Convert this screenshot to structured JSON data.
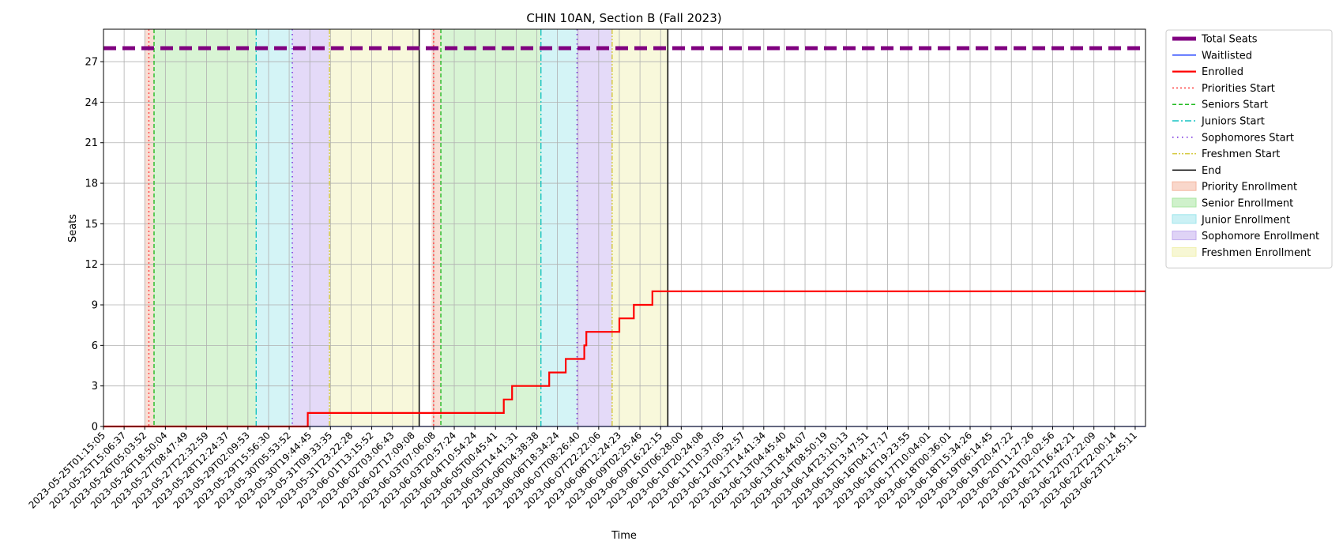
{
  "chart_data": {
    "type": "line",
    "title": "CHIN 10AN, Section B (Fall 2023)",
    "xlabel": "Time",
    "ylabel": "Seats",
    "ylim": [
      0,
      29.4
    ],
    "yticks": [
      0,
      3,
      6,
      9,
      12,
      15,
      18,
      21,
      24,
      27
    ],
    "grid": true,
    "legend_placement": "outside-right-top",
    "x_tick_labels": [
      "2023-05-25T01:15:05",
      "2023-05-25T15:06:37",
      "2023-05-26T05:03:52",
      "2023-05-26T18:50:04",
      "2023-05-27T08:47:49",
      "2023-05-27T22:32:59",
      "2023-05-28T12:24:37",
      "2023-05-29T02:09:53",
      "2023-05-29T15:56:30",
      "2023-05-30T05:53:52",
      "2023-05-30T19:44:45",
      "2023-05-31T09:33:35",
      "2023-05-31T23:22:28",
      "2023-06-01T13:15:52",
      "2023-06-02T03:06:43",
      "2023-06-02T17:09:08",
      "2023-06-03T07:06:08",
      "2023-06-03T20:57:24",
      "2023-06-04T10:54:24",
      "2023-06-05T00:45:41",
      "2023-06-05T14:41:31",
      "2023-06-06T04:38:38",
      "2023-06-06T18:34:24",
      "2023-06-07T08:26:40",
      "2023-06-07T22:22:06",
      "2023-06-08T12:24:23",
      "2023-06-09T02:25:46",
      "2023-06-09T16:22:15",
      "2023-06-10T06:28:00",
      "2023-06-10T20:24:08",
      "2023-06-11T10:37:05",
      "2023-06-12T00:32:57",
      "2023-06-12T14:41:34",
      "2023-06-13T04:45:40",
      "2023-06-13T18:44:07",
      "2023-06-14T08:50:19",
      "2023-06-14T23:10:13",
      "2023-06-15T13:47:51",
      "2023-06-16T04:17:17",
      "2023-06-16T19:23:55",
      "2023-06-17T10:04:01",
      "2023-06-18T00:36:01",
      "2023-06-18T15:34:26",
      "2023-06-19T06:14:45",
      "2023-06-19T20:47:22",
      "2023-06-20T11:27:26",
      "2023-06-21T02:02:56",
      "2023-06-21T16:42:21",
      "2023-06-22T07:22:09",
      "2023-06-22T22:00:14",
      "2023-06-23T12:45:11"
    ],
    "x_range_index": [
      0,
      50.5
    ],
    "series": [
      {
        "name": "Total Seats",
        "color": "#800080",
        "style": "dashed-thick",
        "points": [
          [
            0,
            28
          ],
          [
            50.5,
            28
          ]
        ]
      },
      {
        "name": "Waitlisted",
        "color": "#1f3fff",
        "style": "solid-thin",
        "points": [
          [
            0,
            0
          ],
          [
            50.5,
            0
          ]
        ]
      },
      {
        "name": "Enrolled",
        "color": "#ff0000",
        "style": "steps",
        "points": [
          [
            0,
            0
          ],
          [
            9.9,
            0
          ],
          [
            9.9,
            1
          ],
          [
            19.4,
            1
          ],
          [
            19.4,
            2
          ],
          [
            19.8,
            2
          ],
          [
            19.8,
            3
          ],
          [
            21.6,
            3
          ],
          [
            21.6,
            4
          ],
          [
            22.4,
            4
          ],
          [
            22.4,
            5
          ],
          [
            23.3,
            5
          ],
          [
            23.3,
            6
          ],
          [
            23.4,
            6
          ],
          [
            23.4,
            7
          ],
          [
            25.0,
            7
          ],
          [
            25.0,
            8
          ],
          [
            25.7,
            8
          ],
          [
            25.7,
            9
          ],
          [
            26.6,
            9
          ],
          [
            26.6,
            10
          ],
          [
            50.5,
            10
          ]
        ]
      }
    ],
    "markers": [
      {
        "name": "Priorities Start",
        "color": "#ff4040",
        "style": "dotted",
        "x": [
          2.2,
          16.0
        ]
      },
      {
        "name": "Seniors Start",
        "color": "#22bb22",
        "style": "dashed",
        "x": [
          2.45,
          16.35
        ]
      },
      {
        "name": "Juniors Start",
        "color": "#17c3c3",
        "style": "dashdot",
        "x": [
          7.4,
          21.2
        ]
      },
      {
        "name": "Sophomores Start",
        "color": "#6a1bdb",
        "style": "densedot",
        "x": [
          9.15,
          22.95
        ]
      },
      {
        "name": "Freshmen Start",
        "color": "#d4c83a",
        "style": "dashdotdot",
        "x": [
          10.95,
          24.65
        ]
      },
      {
        "name": "End",
        "color": "#000000",
        "style": "solid",
        "x": [
          15.3,
          27.35
        ]
      }
    ],
    "spans": [
      {
        "name": "Priority Enrollment",
        "color": "#f4b6a0",
        "ranges": [
          [
            2.0,
            2.45
          ],
          [
            15.9,
            16.35
          ]
        ]
      },
      {
        "name": "Senior Enrollment",
        "color": "#a8e6a0",
        "ranges": [
          [
            2.45,
            7.4
          ],
          [
            16.35,
            21.2
          ]
        ]
      },
      {
        "name": "Junior Enrollment",
        "color": "#a0e6ec",
        "ranges": [
          [
            7.4,
            9.15
          ],
          [
            21.2,
            22.95
          ]
        ]
      },
      {
        "name": "Sophomore Enrollment",
        "color": "#c4aeef",
        "ranges": [
          [
            9.15,
            10.95
          ],
          [
            22.95,
            24.65
          ]
        ]
      },
      {
        "name": "Freshmen Enrollment",
        "color": "#f0f0b0",
        "ranges": [
          [
            10.95,
            15.3
          ],
          [
            24.65,
            27.35
          ]
        ]
      }
    ],
    "legend": [
      {
        "label": "Total Seats",
        "kind": "line",
        "color": "#800080",
        "style": "thick"
      },
      {
        "label": "Waitlisted",
        "kind": "line",
        "color": "#1f3fff",
        "style": "solid"
      },
      {
        "label": "Enrolled",
        "kind": "line",
        "color": "#ff0000",
        "style": "solid-bold"
      },
      {
        "label": "Priorities Start",
        "kind": "line",
        "color": "#ff4040",
        "style": "dotted"
      },
      {
        "label": "Seniors Start",
        "kind": "line",
        "color": "#22bb22",
        "style": "dashed"
      },
      {
        "label": "Juniors Start",
        "kind": "line",
        "color": "#17c3c3",
        "style": "dashdot"
      },
      {
        "label": "Sophomores Start",
        "kind": "line",
        "color": "#6a1bdb",
        "style": "densedot"
      },
      {
        "label": "Freshmen Start",
        "kind": "line",
        "color": "#d4c83a",
        "style": "dashdotdot"
      },
      {
        "label": "End",
        "kind": "line",
        "color": "#000000",
        "style": "solid"
      },
      {
        "label": "Priority Enrollment",
        "kind": "patch",
        "color": "#f4b6a0"
      },
      {
        "label": "Senior Enrollment",
        "kind": "patch",
        "color": "#a8e6a0"
      },
      {
        "label": "Junior Enrollment",
        "kind": "patch",
        "color": "#a0e6ec"
      },
      {
        "label": "Sophomore Enrollment",
        "kind": "patch",
        "color": "#c4aeef"
      },
      {
        "label": "Freshmen Enrollment",
        "kind": "patch",
        "color": "#f0f0b0"
      }
    ]
  }
}
